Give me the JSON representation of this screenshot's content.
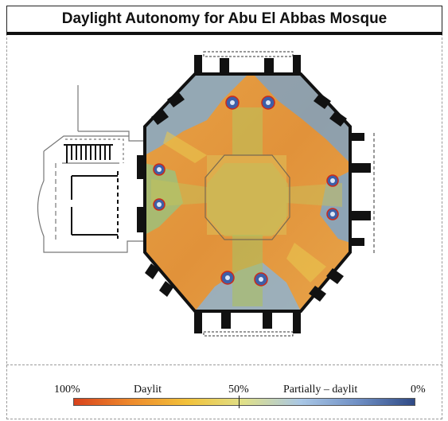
{
  "title": "Daylight Autonomy for Abu El Abbas Mosque",
  "legend": {
    "labels": {
      "max": "100%",
      "daylit": "Daylit",
      "mid": "50%",
      "partial": "Partially – daylit",
      "min": "0%"
    },
    "gradient_colors": [
      "#d8421c",
      "#ee8a2c",
      "#f2c23a",
      "#dfe08a",
      "#a9c7e6",
      "#6f8fc4",
      "#2f4a86"
    ]
  },
  "colors": {
    "wall": "#111111",
    "plan_line": "#888888",
    "map_dominant": "#e49a3a",
    "map_green": "#a9c35a",
    "map_blue": "#6f9fc8",
    "column_marker": "#3d5fa8",
    "column_ring": "#cc2a1a"
  }
}
